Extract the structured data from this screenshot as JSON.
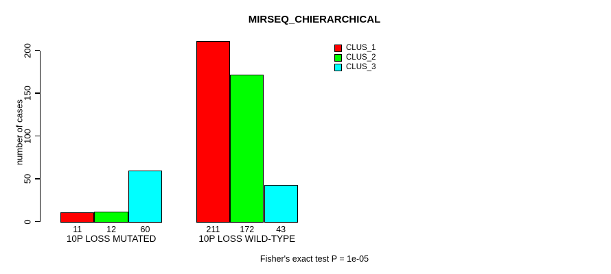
{
  "title": "MIRSEQ_CHIERARCHICAL",
  "ylabel": "number of cases",
  "footer": "Fisher's exact test P = 1e-05",
  "legend": {
    "items": [
      {
        "label": "CLUS_1",
        "color": "#FF0000"
      },
      {
        "label": "CLUS_2",
        "color": "#00FF00"
      },
      {
        "label": "CLUS_3",
        "color": "#00FFFF"
      }
    ]
  },
  "chart_data": {
    "type": "bar",
    "title": "MIRSEQ_CHIERARCHICAL",
    "xlabel": "",
    "ylabel": "number of cases",
    "categories": [
      "10P LOSS MUTATED",
      "10P LOSS WILD-TYPE"
    ],
    "series": [
      {
        "name": "CLUS_1",
        "color": "#FF0000",
        "values": [
          11,
          211
        ]
      },
      {
        "name": "CLUS_2",
        "color": "#00FF00",
        "values": [
          12,
          172
        ]
      },
      {
        "name": "CLUS_3",
        "color": "#00FFFF",
        "values": [
          60,
          43
        ]
      }
    ],
    "bar_value_labels": [
      [
        11,
        12,
        60
      ],
      [
        211,
        172,
        43
      ]
    ],
    "yticks": [
      0,
      50,
      100,
      150,
      200
    ],
    "ylim": [
      0,
      211
    ],
    "grid": false,
    "legend_position": "inside-top-right",
    "annotation": "Fisher's exact test P = 1e-05"
  }
}
